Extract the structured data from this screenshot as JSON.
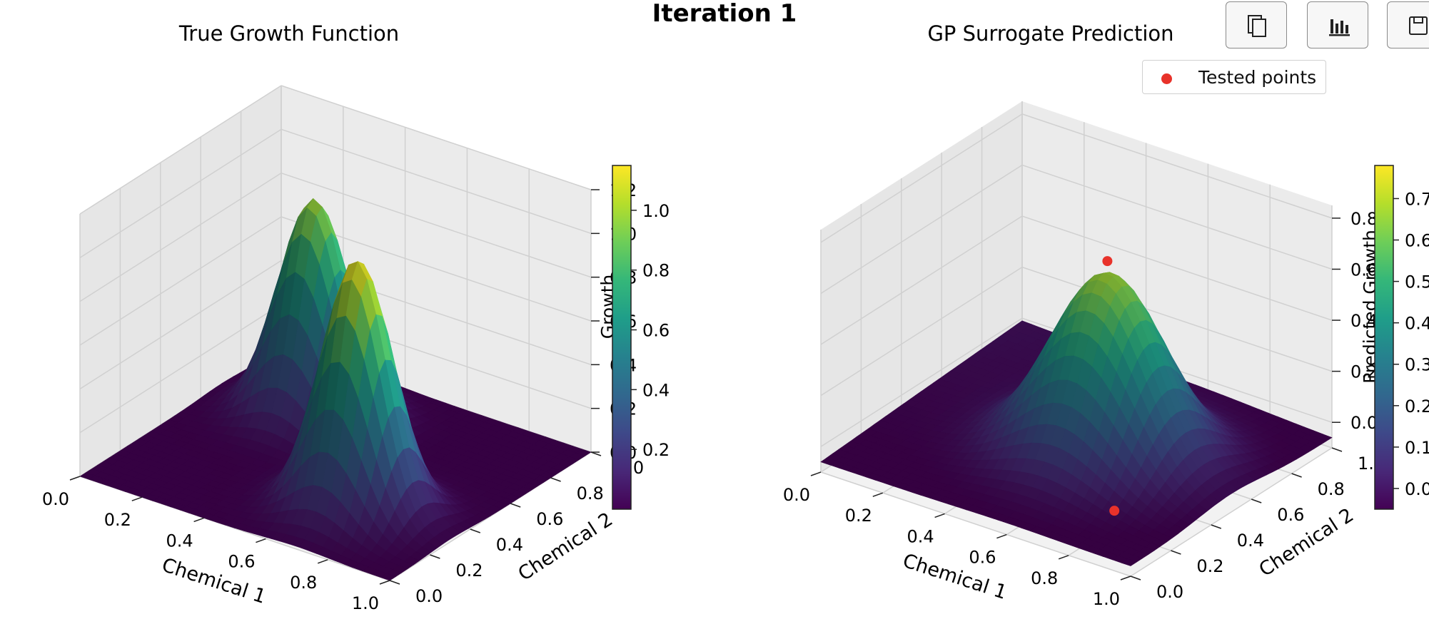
{
  "figure": {
    "suptitle": "Iteration 1"
  },
  "toolbar": {
    "buttons": [
      "copy-icon",
      "chart-icon",
      "save-icon"
    ]
  },
  "colormap": [
    "#440154",
    "#482878",
    "#3e4989",
    "#31688e",
    "#26828e",
    "#1f9e89",
    "#35b779",
    "#6ece58",
    "#b5de2b",
    "#fde725"
  ],
  "chart_data": [
    {
      "type": "surface",
      "title": "True Growth Function",
      "xlabel": "Chemical 1",
      "ylabel": "Chemical 2",
      "zlabel": "Growth",
      "xlim": [
        0,
        1
      ],
      "ylim": [
        0,
        1
      ],
      "zlim": [
        0,
        1.2
      ],
      "xticks": [
        "0.0",
        "0.2",
        "0.4",
        "0.6",
        "0.8",
        "1.0"
      ],
      "yticks": [
        "0.0",
        "0.2",
        "0.4",
        "0.6",
        "0.8",
        "1.0"
      ],
      "zticks": [
        "0.0",
        "0.2",
        "0.4",
        "0.6",
        "0.8",
        "1.0",
        "1.2"
      ],
      "colorbar": {
        "range": [
          0,
          1.15
        ],
        "ticks": [
          "0.2",
          "0.4",
          "0.6",
          "0.8",
          "1.0"
        ]
      },
      "peaks": [
        {
          "chemical_1": 0.3,
          "chemical_2": 0.7,
          "height": 1.0,
          "width": 0.1
        },
        {
          "chemical_1": 0.7,
          "chemical_2": 0.3,
          "height": 1.15,
          "width": 0.1
        }
      ]
    },
    {
      "type": "surface",
      "title": "GP Surrogate Prediction",
      "xlabel": "Chemical 1",
      "ylabel": "Chemical 2",
      "zlabel": "Predicted Growth",
      "xlim": [
        0,
        1
      ],
      "ylim": [
        0,
        1
      ],
      "zlim": [
        -0.1,
        0.85
      ],
      "xticks": [
        "0.0",
        "0.2",
        "0.4",
        "0.6",
        "0.8",
        "1.0"
      ],
      "yticks": [
        "0.0",
        "0.2",
        "0.4",
        "0.6",
        "0.8",
        "1.0"
      ],
      "zticks": [
        "0.0",
        "0.2",
        "0.4",
        "0.6",
        "0.8"
      ],
      "colorbar": {
        "range": [
          -0.05,
          0.78
        ],
        "ticks": [
          "0.0",
          "0.1",
          "0.2",
          "0.3",
          "0.4",
          "0.5",
          "0.6",
          "0.7"
        ]
      },
      "legend": {
        "entries": [
          "Tested points"
        ],
        "color": "#e8322a"
      },
      "tested_points": [
        {
          "chemical_1": 0.6,
          "chemical_2": 0.5,
          "growth": 0.72
        },
        {
          "chemical_1": 0.85,
          "chemical_2": 0.15,
          "growth": 0.02
        }
      ]
    }
  ]
}
